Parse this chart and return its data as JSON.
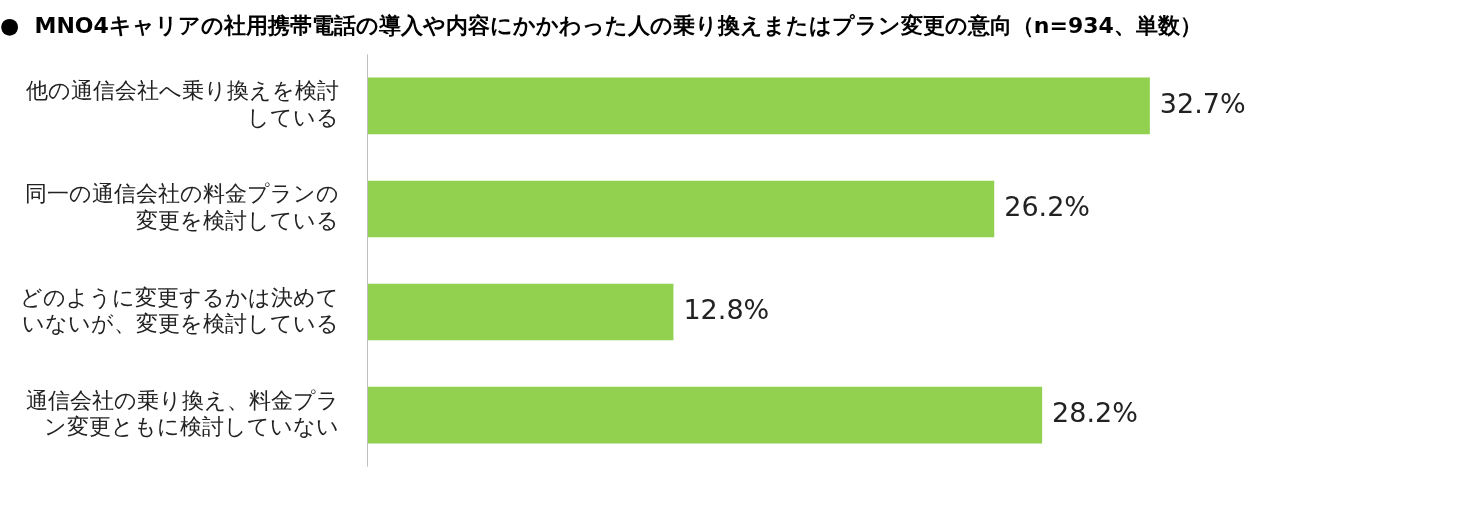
{
  "chart_data": {
    "type": "bar",
    "orientation": "horizontal",
    "title": "●  MNO4キャリアの社用携帯電話の導入や内容にかかわった人の乗り換えまたはプラン変更の意向（n=934、単数）",
    "categories": [
      "他の通信会社へ乗り換えを検討している",
      "同一の通信会社の料金プランの変更を検討している",
      "どのように変更するかは決めていないが、変更を検討している",
      "通信会社の乗り換え、料金プラン変更ともに検討していない"
    ],
    "values": [
      32.7,
      26.2,
      12.8,
      28.2
    ],
    "value_labels": [
      "32.7%",
      "26.2%",
      "12.8%",
      "28.2%"
    ],
    "color": "#92d050"
  }
}
